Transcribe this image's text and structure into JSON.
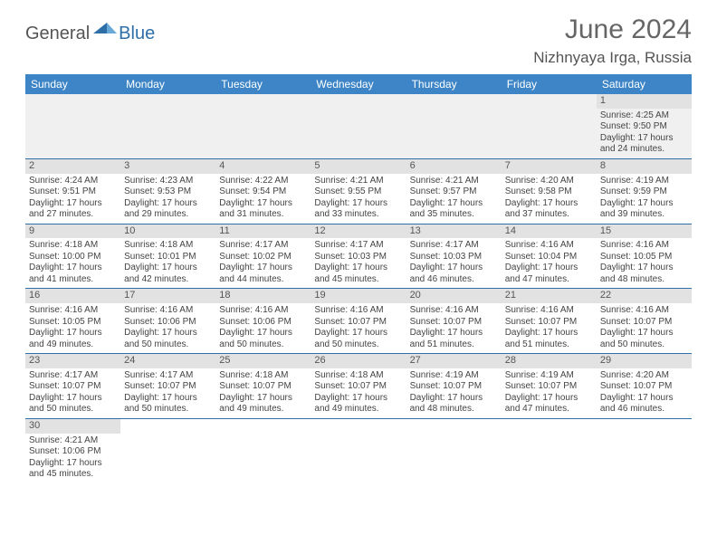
{
  "logo": {
    "part1": "General",
    "part2": "Blue"
  },
  "title": "June 2024",
  "location": "Nizhnyaya Irga, Russia",
  "colors": {
    "header_bg": "#3d85c6",
    "header_text": "#ffffff",
    "daynum_bg": "#e2e2e2",
    "border": "#2f6fa8",
    "logo_blue": "#2f6fa8",
    "text": "#444444"
  },
  "weekdays": [
    "Sunday",
    "Monday",
    "Tuesday",
    "Wednesday",
    "Thursday",
    "Friday",
    "Saturday"
  ],
  "weeks": [
    [
      null,
      null,
      null,
      null,
      null,
      null,
      {
        "n": "1",
        "sr": "Sunrise: 4:25 AM",
        "ss": "Sunset: 9:50 PM",
        "d1": "Daylight: 17 hours",
        "d2": "and 24 minutes."
      }
    ],
    [
      {
        "n": "2",
        "sr": "Sunrise: 4:24 AM",
        "ss": "Sunset: 9:51 PM",
        "d1": "Daylight: 17 hours",
        "d2": "and 27 minutes."
      },
      {
        "n": "3",
        "sr": "Sunrise: 4:23 AM",
        "ss": "Sunset: 9:53 PM",
        "d1": "Daylight: 17 hours",
        "d2": "and 29 minutes."
      },
      {
        "n": "4",
        "sr": "Sunrise: 4:22 AM",
        "ss": "Sunset: 9:54 PM",
        "d1": "Daylight: 17 hours",
        "d2": "and 31 minutes."
      },
      {
        "n": "5",
        "sr": "Sunrise: 4:21 AM",
        "ss": "Sunset: 9:55 PM",
        "d1": "Daylight: 17 hours",
        "d2": "and 33 minutes."
      },
      {
        "n": "6",
        "sr": "Sunrise: 4:21 AM",
        "ss": "Sunset: 9:57 PM",
        "d1": "Daylight: 17 hours",
        "d2": "and 35 minutes."
      },
      {
        "n": "7",
        "sr": "Sunrise: 4:20 AM",
        "ss": "Sunset: 9:58 PM",
        "d1": "Daylight: 17 hours",
        "d2": "and 37 minutes."
      },
      {
        "n": "8",
        "sr": "Sunrise: 4:19 AM",
        "ss": "Sunset: 9:59 PM",
        "d1": "Daylight: 17 hours",
        "d2": "and 39 minutes."
      }
    ],
    [
      {
        "n": "9",
        "sr": "Sunrise: 4:18 AM",
        "ss": "Sunset: 10:00 PM",
        "d1": "Daylight: 17 hours",
        "d2": "and 41 minutes."
      },
      {
        "n": "10",
        "sr": "Sunrise: 4:18 AM",
        "ss": "Sunset: 10:01 PM",
        "d1": "Daylight: 17 hours",
        "d2": "and 42 minutes."
      },
      {
        "n": "11",
        "sr": "Sunrise: 4:17 AM",
        "ss": "Sunset: 10:02 PM",
        "d1": "Daylight: 17 hours",
        "d2": "and 44 minutes."
      },
      {
        "n": "12",
        "sr": "Sunrise: 4:17 AM",
        "ss": "Sunset: 10:03 PM",
        "d1": "Daylight: 17 hours",
        "d2": "and 45 minutes."
      },
      {
        "n": "13",
        "sr": "Sunrise: 4:17 AM",
        "ss": "Sunset: 10:03 PM",
        "d1": "Daylight: 17 hours",
        "d2": "and 46 minutes."
      },
      {
        "n": "14",
        "sr": "Sunrise: 4:16 AM",
        "ss": "Sunset: 10:04 PM",
        "d1": "Daylight: 17 hours",
        "d2": "and 47 minutes."
      },
      {
        "n": "15",
        "sr": "Sunrise: 4:16 AM",
        "ss": "Sunset: 10:05 PM",
        "d1": "Daylight: 17 hours",
        "d2": "and 48 minutes."
      }
    ],
    [
      {
        "n": "16",
        "sr": "Sunrise: 4:16 AM",
        "ss": "Sunset: 10:05 PM",
        "d1": "Daylight: 17 hours",
        "d2": "and 49 minutes."
      },
      {
        "n": "17",
        "sr": "Sunrise: 4:16 AM",
        "ss": "Sunset: 10:06 PM",
        "d1": "Daylight: 17 hours",
        "d2": "and 50 minutes."
      },
      {
        "n": "18",
        "sr": "Sunrise: 4:16 AM",
        "ss": "Sunset: 10:06 PM",
        "d1": "Daylight: 17 hours",
        "d2": "and 50 minutes."
      },
      {
        "n": "19",
        "sr": "Sunrise: 4:16 AM",
        "ss": "Sunset: 10:07 PM",
        "d1": "Daylight: 17 hours",
        "d2": "and 50 minutes."
      },
      {
        "n": "20",
        "sr": "Sunrise: 4:16 AM",
        "ss": "Sunset: 10:07 PM",
        "d1": "Daylight: 17 hours",
        "d2": "and 51 minutes."
      },
      {
        "n": "21",
        "sr": "Sunrise: 4:16 AM",
        "ss": "Sunset: 10:07 PM",
        "d1": "Daylight: 17 hours",
        "d2": "and 51 minutes."
      },
      {
        "n": "22",
        "sr": "Sunrise: 4:16 AM",
        "ss": "Sunset: 10:07 PM",
        "d1": "Daylight: 17 hours",
        "d2": "and 50 minutes."
      }
    ],
    [
      {
        "n": "23",
        "sr": "Sunrise: 4:17 AM",
        "ss": "Sunset: 10:07 PM",
        "d1": "Daylight: 17 hours",
        "d2": "and 50 minutes."
      },
      {
        "n": "24",
        "sr": "Sunrise: 4:17 AM",
        "ss": "Sunset: 10:07 PM",
        "d1": "Daylight: 17 hours",
        "d2": "and 50 minutes."
      },
      {
        "n": "25",
        "sr": "Sunrise: 4:18 AM",
        "ss": "Sunset: 10:07 PM",
        "d1": "Daylight: 17 hours",
        "d2": "and 49 minutes."
      },
      {
        "n": "26",
        "sr": "Sunrise: 4:18 AM",
        "ss": "Sunset: 10:07 PM",
        "d1": "Daylight: 17 hours",
        "d2": "and 49 minutes."
      },
      {
        "n": "27",
        "sr": "Sunrise: 4:19 AM",
        "ss": "Sunset: 10:07 PM",
        "d1": "Daylight: 17 hours",
        "d2": "and 48 minutes."
      },
      {
        "n": "28",
        "sr": "Sunrise: 4:19 AM",
        "ss": "Sunset: 10:07 PM",
        "d1": "Daylight: 17 hours",
        "d2": "and 47 minutes."
      },
      {
        "n": "29",
        "sr": "Sunrise: 4:20 AM",
        "ss": "Sunset: 10:07 PM",
        "d1": "Daylight: 17 hours",
        "d2": "and 46 minutes."
      }
    ],
    [
      {
        "n": "30",
        "sr": "Sunrise: 4:21 AM",
        "ss": "Sunset: 10:06 PM",
        "d1": "Daylight: 17 hours",
        "d2": "and 45 minutes."
      },
      null,
      null,
      null,
      null,
      null,
      null
    ]
  ]
}
